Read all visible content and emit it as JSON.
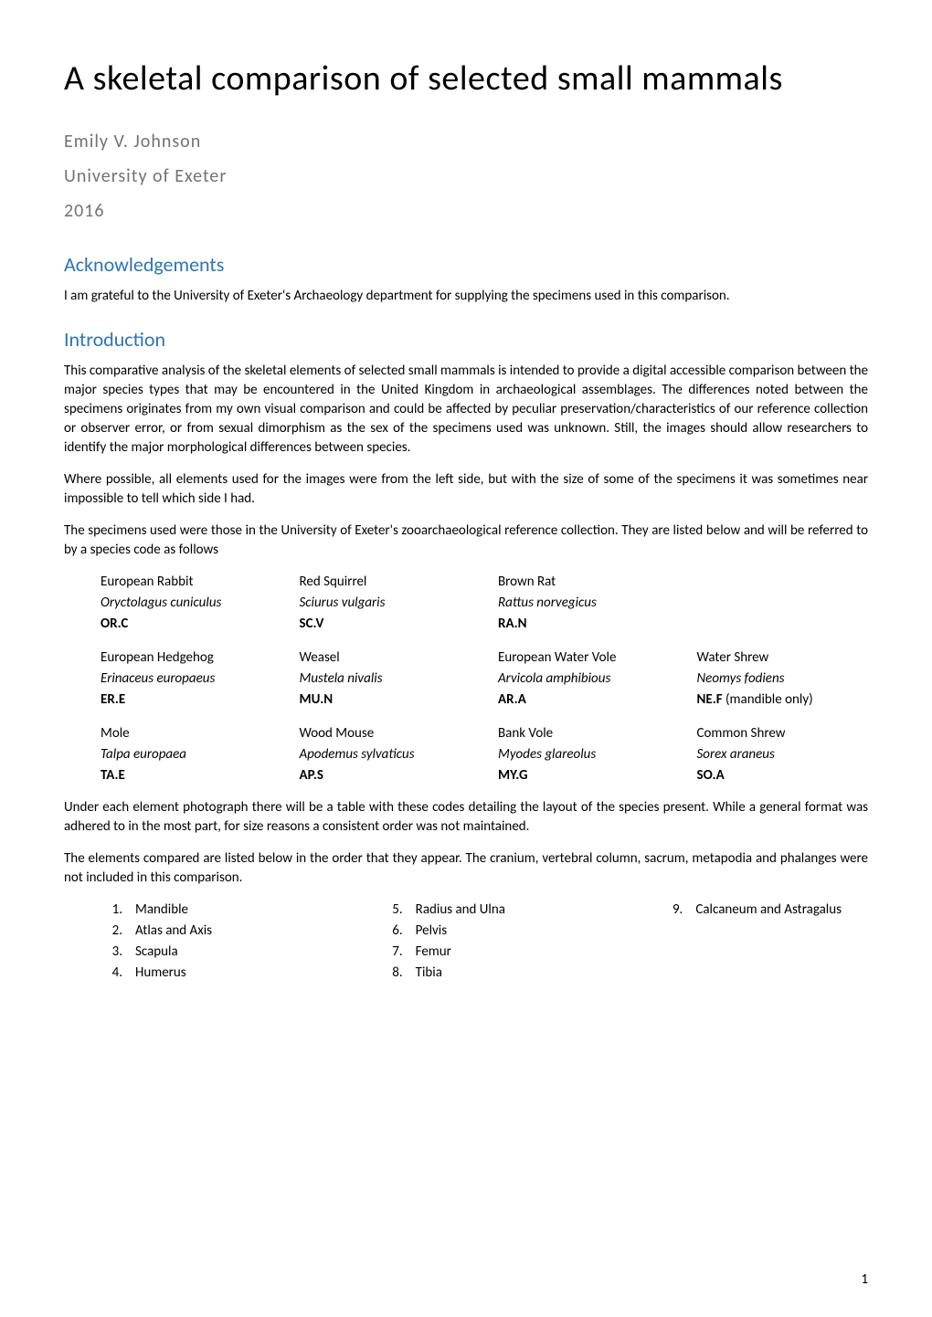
{
  "title": "A skeletal comparison of selected small mammals",
  "author": "Emily V. Johnson",
  "affiliation": "University of Exeter",
  "year": "2016",
  "sections": {
    "ack": {
      "heading": "Acknowledgements",
      "text": "I am grateful to the University of Exeter's Archaeology department for supplying the specimens used in this comparison."
    },
    "intro": {
      "heading": "Introduction",
      "para1": "This comparative analysis of the skeletal elements of selected small mammals is intended to provide a digital accessible comparison between the major species types that may be encountered in the United Kingdom in archaeological assemblages. The differences noted between the specimens originates from my own visual comparison and could be affected by peculiar preservation/characteristics of our reference collection or observer error, or from sexual dimorphism as the sex of the specimens used was unknown. Still, the images should allow researchers to identify the major morphological differences between species.",
      "para2": "Where possible, all elements used for the images were from the left side, but with the size of some of the specimens it was sometimes near impossible to tell which side I had.",
      "para3": "The specimens used were those in the University of Exeter's zooarchaeological reference collection. They are listed below and will be referred to by a species code as follows"
    }
  },
  "species_table": {
    "rows": [
      [
        {
          "common": "European Rabbit",
          "latin": "Oryctolagus cuniculus",
          "code": "OR.C"
        },
        {
          "common": "Red Squirrel",
          "latin": "Sciurus vulgaris",
          "code": "SC.V"
        },
        {
          "common": "Brown Rat",
          "latin": "Rattus norvegicus",
          "code": "RA.N"
        },
        null
      ],
      [
        {
          "common": "European Hedgehog",
          "latin": "Erinaceus europaeus",
          "code": "ER.E"
        },
        {
          "common": "Weasel",
          "latin": "Mustela nivalis",
          "code": "MU.N"
        },
        {
          "common": "European Water Vole",
          "latin": "Arvicola amphibious",
          "code": "AR.A"
        },
        {
          "common": "Water Shrew",
          "latin": "Neomys fodiens",
          "code": "NE.F",
          "code_suffix": " (mandible only)"
        }
      ],
      [
        {
          "common": "Mole",
          "latin": "Talpa europaea",
          "code": "TA.E"
        },
        {
          "common": "Wood Mouse",
          "latin": "Apodemus sylvaticus",
          "code": "AP.S"
        },
        {
          "common": "Bank Vole",
          "latin": "Myodes glareolus",
          "code": "MY.G"
        },
        {
          "common": "Common Shrew",
          "latin": "Sorex araneus",
          "code": "SO.A"
        }
      ]
    ]
  },
  "post_table": {
    "para1": "Under each element photograph there will be a table with these codes detailing the layout of the species present. While a general format was adhered to in the most part, for size reasons a consistent order was not maintained.",
    "para2": "The elements compared are listed below in the order that they appear. The cranium, vertebral column, sacrum, metapodia and phalanges were not included in this comparison."
  },
  "elements": {
    "col1": [
      {
        "n": "1.",
        "t": "Mandible"
      },
      {
        "n": "2.",
        "t": "Atlas and Axis"
      },
      {
        "n": "3.",
        "t": "Scapula"
      },
      {
        "n": "4.",
        "t": "Humerus"
      }
    ],
    "col2": [
      {
        "n": "5.",
        "t": "Radius and Ulna"
      },
      {
        "n": "6.",
        "t": "Pelvis"
      },
      {
        "n": "7.",
        "t": "Femur"
      },
      {
        "n": "8.",
        "t": "Tibia"
      }
    ],
    "col3": [
      {
        "n": "9.",
        "t": "Calcaneum and Astragalus"
      }
    ]
  },
  "page_number": "1",
  "colors": {
    "heading_blue": "#2e74b5",
    "subheader_gray": "#767171",
    "body_text": "#000000",
    "background": "#ffffff"
  },
  "typography": {
    "title_fontsize": 38,
    "title_weight": 300,
    "subheader_fontsize": 20,
    "section_heading_fontsize": 22,
    "body_fontsize": 15,
    "font_family": "Calibri"
  }
}
